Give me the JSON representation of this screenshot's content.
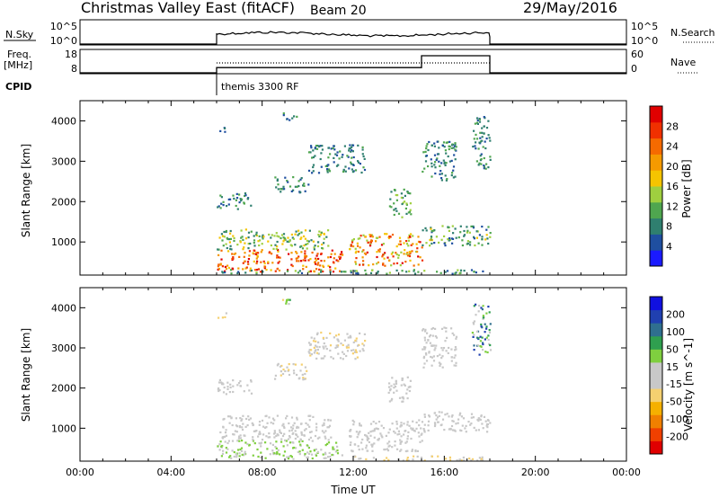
{
  "header": {
    "title": "Christmas Valley East (fitACF)",
    "beam": "Beam 20",
    "date": "29/May/2016"
  },
  "strips": {
    "nsky_label": "N.Sky",
    "freq_label_1": "Freq.",
    "freq_label_2": "[MHz]",
    "cpid_label": "CPID",
    "nsearch_label": "N.Search",
    "nave_label": "Nave",
    "nsky_ticks": [
      "10^5",
      "10^0"
    ],
    "nsearch_ticks": [
      "10^5",
      "10^0"
    ],
    "freq_ticks": [
      "18",
      "8"
    ],
    "nave_ticks": [
      "60",
      "0"
    ],
    "cpid_text": "themis 3300 RF",
    "operating_start_hour": 6,
    "operating_end_hour": 18,
    "freq_mhz": 11,
    "nave_step_hour": 15
  },
  "chart_data": [
    {
      "type": "heatmap",
      "title": "",
      "ylabel": "Slant Range [km]",
      "xlabel": "",
      "xlim": [
        0,
        24
      ],
      "ylim": [
        180,
        4500
      ],
      "yticks": [
        "1000",
        "2000",
        "3000",
        "4000"
      ],
      "colorbar": {
        "label": "Power [dB]",
        "range": [
          0,
          30
        ],
        "ticks": [
          "4",
          "8",
          "12",
          "16",
          "20",
          "24",
          "28"
        ],
        "colors": [
          "#1a1aff",
          "#1f4fa0",
          "#2f7f6f",
          "#4fa64f",
          "#9fcf3f",
          "#f5c400",
          "#f59a00",
          "#f56a00",
          "#f03000",
          "#e00000"
        ]
      },
      "blobs": [
        {
          "t0": 6.0,
          "t1": 11.5,
          "r0": 250,
          "r1": 800,
          "v0": 16,
          "v1": 30
        },
        {
          "t0": 6.0,
          "t1": 11.0,
          "r0": 800,
          "r1": 1300,
          "v0": 6,
          "v1": 18
        },
        {
          "t0": 11.8,
          "t1": 15.0,
          "r0": 400,
          "r1": 1200,
          "v0": 12,
          "v1": 28
        },
        {
          "t0": 15.0,
          "t1": 18.0,
          "r0": 900,
          "r1": 1400,
          "v0": 4,
          "v1": 16
        },
        {
          "t0": 6.0,
          "t1": 18.0,
          "r0": 200,
          "r1": 300,
          "v0": 4,
          "v1": 14
        },
        {
          "t0": 6.0,
          "t1": 7.5,
          "r0": 1800,
          "r1": 2200,
          "v0": 4,
          "v1": 12
        },
        {
          "t0": 8.5,
          "t1": 10.0,
          "r0": 2200,
          "r1": 2600,
          "v0": 4,
          "v1": 12
        },
        {
          "t0": 10.0,
          "t1": 12.5,
          "r0": 2700,
          "r1": 3400,
          "v0": 4,
          "v1": 10
        },
        {
          "t0": 13.5,
          "t1": 14.5,
          "r0": 1600,
          "r1": 2300,
          "v0": 6,
          "v1": 14
        },
        {
          "t0": 15.0,
          "t1": 16.5,
          "r0": 2500,
          "r1": 3500,
          "v0": 4,
          "v1": 12
        },
        {
          "t0": 17.2,
          "t1": 18.0,
          "r0": 2800,
          "r1": 4100,
          "v0": 4,
          "v1": 12
        },
        {
          "t0": 8.8,
          "t1": 9.5,
          "r0": 4000,
          "r1": 4200,
          "v0": 4,
          "v1": 10
        },
        {
          "t0": 6.0,
          "t1": 6.4,
          "r0": 3700,
          "r1": 3900,
          "v0": 4,
          "v1": 8
        }
      ]
    },
    {
      "type": "heatmap",
      "title": "",
      "ylabel": "Slant Range [km]",
      "xlabel": "Time UT",
      "xlim": [
        0,
        24
      ],
      "ylim": [
        180,
        4500
      ],
      "yticks": [
        "1000",
        "2000",
        "3000",
        "4000"
      ],
      "xticks": [
        "00:00",
        "04:00",
        "08:00",
        "12:00",
        "16:00",
        "20:00",
        "00:00"
      ],
      "colorbar": {
        "label": "Velocity [m s^-1]",
        "range": [
          -250,
          250
        ],
        "ticks": [
          "-200",
          "-100",
          "-50",
          "-15",
          "15",
          "50",
          "100",
          "200"
        ],
        "colors": [
          "#e00000",
          "#f04000",
          "#f08000",
          "#f5b000",
          "#f5d070",
          "#c8c8c8",
          "#c8c8c8",
          "#7fcf3f",
          "#2f9f4f",
          "#2f6f8f",
          "#2040b0",
          "#1010e0"
        ]
      },
      "blobs": [
        {
          "t0": 6.0,
          "t1": 11.5,
          "r0": 220,
          "r1": 700,
          "v0": 20,
          "v1": 60
        },
        {
          "t0": 6.0,
          "t1": 11.0,
          "r0": 700,
          "r1": 1300,
          "v0": -12,
          "v1": 12
        },
        {
          "t0": 11.8,
          "t1": 15.0,
          "r0": 400,
          "r1": 1200,
          "v0": -12,
          "v1": 12
        },
        {
          "t0": 15.0,
          "t1": 18.0,
          "r0": 900,
          "r1": 1400,
          "v0": -12,
          "v1": 12
        },
        {
          "t0": 12.0,
          "t1": 18.0,
          "r0": 180,
          "r1": 300,
          "v0": -60,
          "v1": -20
        },
        {
          "t0": 6.0,
          "t1": 7.5,
          "r0": 1800,
          "r1": 2200,
          "v0": -12,
          "v1": 12
        },
        {
          "t0": 8.5,
          "t1": 10.0,
          "r0": 2200,
          "r1": 2600,
          "v0": -60,
          "v1": -15
        },
        {
          "t0": 10.0,
          "t1": 12.5,
          "r0": 2700,
          "r1": 3400,
          "v0": -60,
          "v1": 10
        },
        {
          "t0": 13.5,
          "t1": 14.5,
          "r0": 1600,
          "r1": 2300,
          "v0": -12,
          "v1": 12
        },
        {
          "t0": 15.0,
          "t1": 16.5,
          "r0": 2500,
          "r1": 3500,
          "v0": -12,
          "v1": 12
        },
        {
          "t0": 17.2,
          "t1": 18.0,
          "r0": 2800,
          "r1": 4100,
          "v0": -12,
          "v1": 220
        },
        {
          "t0": 8.8,
          "t1": 9.5,
          "r0": 4000,
          "r1": 4200,
          "v0": -100,
          "v1": 100
        },
        {
          "t0": 6.0,
          "t1": 6.4,
          "r0": 3700,
          "r1": 3900,
          "v0": -60,
          "v1": -15
        }
      ]
    }
  ]
}
